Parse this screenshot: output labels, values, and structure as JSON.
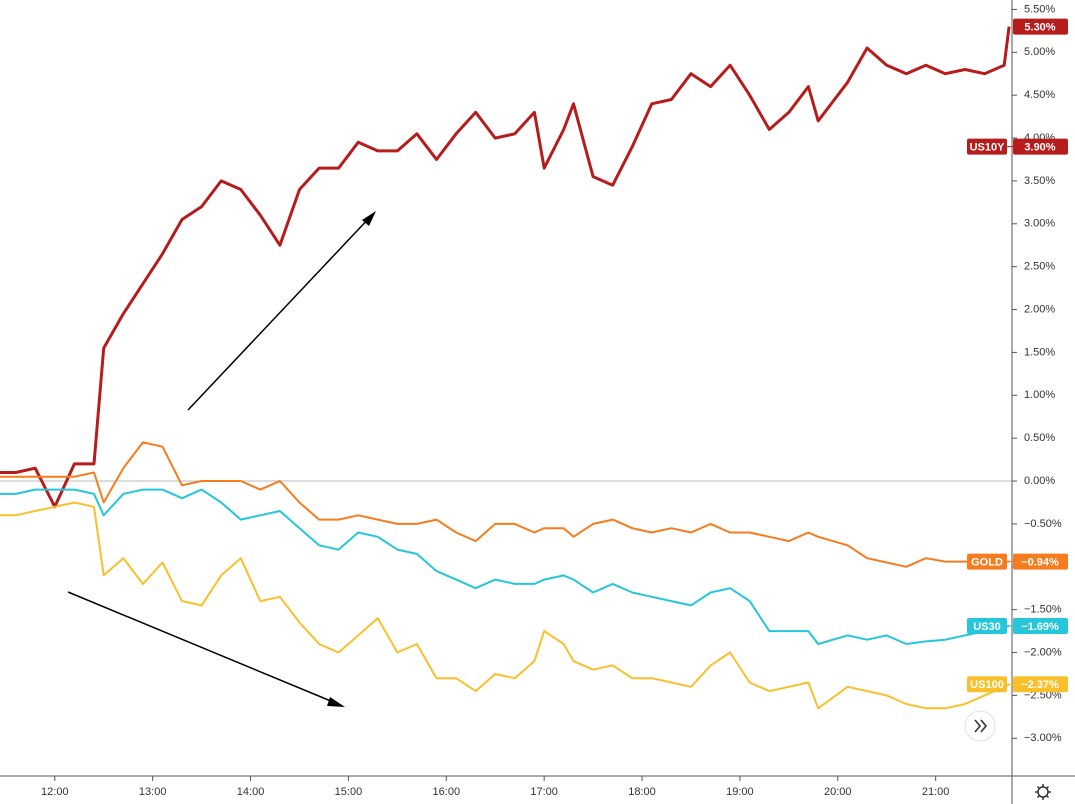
{
  "chart_data": {
    "type": "line",
    "x": [
      11.44,
      11.6,
      11.8,
      12.0,
      12.2,
      12.4,
      12.5,
      12.7,
      12.9,
      13.1,
      13.3,
      13.5,
      13.7,
      13.9,
      14.1,
      14.3,
      14.5,
      14.7,
      14.9,
      15.1,
      15.3,
      15.5,
      15.7,
      15.9,
      16.1,
      16.3,
      16.5,
      16.7,
      16.9,
      17.0,
      17.2,
      17.3,
      17.5,
      17.7,
      17.9,
      18.1,
      18.3,
      18.5,
      18.7,
      18.9,
      19.1,
      19.3,
      19.5,
      19.7,
      19.8,
      20.1,
      20.3,
      20.5,
      20.7,
      20.9,
      21.1,
      21.3,
      21.5,
      21.7,
      21.75
    ],
    "xlim": [
      11.44,
      21.78
    ],
    "xticks": [
      {
        "value": 12,
        "label": "12:00"
      },
      {
        "value": 13,
        "label": "13:00"
      },
      {
        "value": 14,
        "label": "14:00"
      },
      {
        "value": 15,
        "label": "15:00"
      },
      {
        "value": 16,
        "label": "16:00"
      },
      {
        "value": 17,
        "label": "17:00"
      },
      {
        "value": 18,
        "label": "18:00"
      },
      {
        "value": 19,
        "label": "19:00"
      },
      {
        "value": 20,
        "label": "20:00"
      },
      {
        "value": 21,
        "label": "21:00"
      }
    ],
    "ylim": [
      -3.44,
      5.61
    ],
    "yticks": [
      {
        "value": 5.5,
        "label": "5.50%"
      },
      {
        "value": 5.0,
        "label": "5.00%"
      },
      {
        "value": 4.5,
        "label": "4.50%"
      },
      {
        "value": 4.0,
        "label": "4.00%"
      },
      {
        "value": 3.5,
        "label": "3.50%"
      },
      {
        "value": 3.0,
        "label": "3.00%"
      },
      {
        "value": 2.5,
        "label": "2.50%"
      },
      {
        "value": 2.0,
        "label": "2.00%"
      },
      {
        "value": 1.5,
        "label": "1.50%"
      },
      {
        "value": 1.0,
        "label": "1.00%"
      },
      {
        "value": 0.5,
        "label": "0.50%"
      },
      {
        "value": 0,
        "label": "0.00%"
      },
      {
        "value": -0.5,
        "label": "−0.50%"
      },
      {
        "value": -1.0,
        "label": "−1.00%"
      },
      {
        "value": -1.5,
        "label": "−1.50%"
      },
      {
        "value": -2.0,
        "label": "−2.00%"
      },
      {
        "value": -2.5,
        "label": "−2.50%"
      },
      {
        "value": -3.0,
        "label": "−3.00%"
      }
    ],
    "hline": 0,
    "series": [
      {
        "name": "US10Y",
        "color": "#b71c1c",
        "values": [
          0.1,
          0.1,
          0.15,
          -0.3,
          0.2,
          0.2,
          1.55,
          1.95,
          2.3,
          2.65,
          3.05,
          3.2,
          3.5,
          3.4,
          3.1,
          2.75,
          3.4,
          3.65,
          3.65,
          3.95,
          3.85,
          3.85,
          4.05,
          3.75,
          4.05,
          4.3,
          4.0,
          4.05,
          4.3,
          3.65,
          4.1,
          4.4,
          3.55,
          3.45,
          3.9,
          4.4,
          4.45,
          4.75,
          4.6,
          4.85,
          4.5,
          4.1,
          4.3,
          4.6,
          4.2,
          4.65,
          5.05,
          4.85,
          4.75,
          4.85,
          4.75,
          4.8,
          4.75,
          4.85,
          5.3
        ],
        "price_labels": [
          {
            "value": 5.3,
            "label": "5.30%"
          },
          {
            "value": 3.9,
            "label": "3.90%"
          }
        ]
      },
      {
        "name": "GOLD",
        "color": "#f57c1f",
        "values": [
          0.05,
          0.05,
          0.05,
          0.05,
          0.05,
          0.1,
          -0.25,
          0.15,
          0.45,
          0.4,
          -0.05,
          0.0,
          0.0,
          0.0,
          -0.1,
          0.0,
          -0.25,
          -0.45,
          -0.45,
          -0.4,
          -0.45,
          -0.5,
          -0.5,
          -0.45,
          -0.6,
          -0.7,
          -0.5,
          -0.5,
          -0.6,
          -0.55,
          -0.55,
          -0.65,
          -0.5,
          -0.45,
          -0.55,
          -0.6,
          -0.55,
          -0.6,
          -0.5,
          -0.6,
          -0.6,
          -0.65,
          -0.7,
          -0.6,
          -0.65,
          -0.75,
          -0.9,
          -0.95,
          -1.0,
          -0.9,
          -0.94,
          -0.94,
          -0.94,
          -0.94,
          -0.94
        ],
        "price_labels": [
          {
            "value": -0.94,
            "label": "−0.94%"
          }
        ]
      },
      {
        "name": "US30",
        "color": "#26c6da",
        "values": [
          -0.15,
          -0.15,
          -0.1,
          -0.1,
          -0.1,
          -0.15,
          -0.4,
          -0.15,
          -0.1,
          -0.1,
          -0.2,
          -0.1,
          -0.25,
          -0.45,
          -0.4,
          -0.35,
          -0.55,
          -0.75,
          -0.8,
          -0.6,
          -0.65,
          -0.8,
          -0.85,
          -1.05,
          -1.15,
          -1.25,
          -1.15,
          -1.2,
          -1.2,
          -1.15,
          -1.1,
          -1.15,
          -1.3,
          -1.2,
          -1.3,
          -1.35,
          -1.4,
          -1.45,
          -1.3,
          -1.25,
          -1.4,
          -1.75,
          -1.75,
          -1.75,
          -1.9,
          -1.8,
          -1.85,
          -1.8,
          -1.9,
          -1.87,
          -1.85,
          -1.8,
          -1.75,
          -1.7,
          -1.69
        ],
        "price_labels": [
          {
            "value": -1.69,
            "label": "−1.69%"
          }
        ]
      },
      {
        "name": "US100",
        "color": "#f9c02c",
        "values": [
          -0.4,
          -0.4,
          -0.35,
          -0.3,
          -0.25,
          -0.3,
          -1.1,
          -0.9,
          -1.2,
          -0.95,
          -1.4,
          -1.45,
          -1.1,
          -0.9,
          -1.4,
          -1.35,
          -1.65,
          -1.9,
          -2.0,
          -1.8,
          -1.6,
          -2.0,
          -1.9,
          -2.3,
          -2.3,
          -2.45,
          -2.25,
          -2.3,
          -2.1,
          -1.75,
          -1.9,
          -2.1,
          -2.2,
          -2.15,
          -2.3,
          -2.3,
          -2.35,
          -2.4,
          -2.15,
          -2.0,
          -2.35,
          -2.45,
          -2.4,
          -2.35,
          -2.65,
          -2.4,
          -2.45,
          -2.5,
          -2.6,
          -2.65,
          -2.65,
          -2.6,
          -2.5,
          -2.4,
          -2.37
        ],
        "price_labels": [
          {
            "value": -2.37,
            "label": "−2.37%"
          }
        ]
      }
    ]
  }
}
